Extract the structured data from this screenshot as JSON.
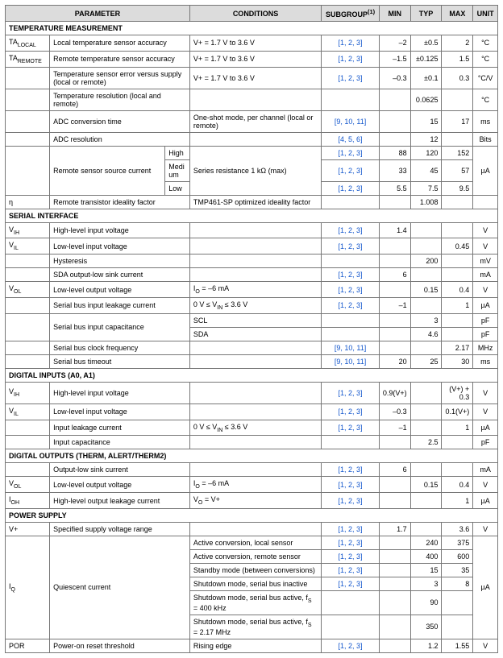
{
  "headers": {
    "param": "PARAMETER",
    "cond": "CONDITIONS",
    "subg": "SUBGROUP",
    "subg_sup": "(1)",
    "min": "MIN",
    "typ": "TYP",
    "max": "MAX",
    "unit": "UNIT"
  },
  "subgroup_color": "#1155cc",
  "header_bg": "#dcdcdc",
  "border_color": "#777777",
  "sections": [
    {
      "title": "TEMPERATURE MEASUREMENT",
      "rows": [
        {
          "sym_html": "TA<sub>LOCAL</sub>",
          "param": "Local temperature sensor accuracy",
          "cond": "V+ = 1.7 V to 3.6 V",
          "subg": "[1, 2, 3]",
          "min": "–2",
          "typ": "±0.5",
          "max": "2",
          "unit": "°C"
        },
        {
          "sym_html": "TA<sub>REMOTE</sub>",
          "param": "Remote temperature sensor accuracy",
          "cond": "V+ = 1.7 V to 3.6 V",
          "subg": "[1, 2, 3]",
          "min": "–1.5",
          "typ": "±0.125",
          "max": "1.5",
          "unit": "°C"
        },
        {
          "sym_html": "",
          "param": "Temperature sensor error versus supply (local or remote)",
          "cond": "V+ = 1.7 V to 3.6 V",
          "subg": "[1, 2, 3]",
          "min": "–0.3",
          "typ": "±0.1",
          "max": "0.3",
          "unit": "°C/V"
        },
        {
          "sym_html": "",
          "param": "Temperature resolution (local and remote)",
          "cond": "",
          "subg": "",
          "min": "",
          "typ": "0.0625",
          "max": "",
          "unit": "°C"
        },
        {
          "sym_html": "",
          "param": "ADC conversion time",
          "cond": "One-shot mode, per channel (local or remote)",
          "subg": "[9, 10, 11]",
          "min": "",
          "typ": "15",
          "max": "17",
          "unit": "ms"
        },
        {
          "sym_html": "",
          "param": "ADC resolution",
          "cond": "",
          "subg": "[4, 5, 6]",
          "min": "",
          "typ": "12",
          "max": "",
          "unit": "Bits"
        }
      ],
      "remote_sensor": {
        "param": "Remote sensor source current",
        "cond": "Series resistance 1 kΩ (max)",
        "unit": "µA",
        "levels": [
          {
            "label": "High",
            "subg": "[1, 2, 3]",
            "min": "88",
            "typ": "120",
            "max": "152"
          },
          {
            "label": "Medium",
            "subg": "[1, 2, 3]",
            "min": "33",
            "typ": "45",
            "max": "57"
          },
          {
            "label": "Low",
            "subg": "[1, 2, 3]",
            "min": "5.5",
            "typ": "7.5",
            "max": "9.5"
          }
        ]
      },
      "ideality": {
        "sym": "η",
        "param": "Remote transistor ideality factor",
        "cond": "TMP461-SP optimized ideality factor",
        "subg": "",
        "min": "",
        "typ": "1.008",
        "max": "",
        "unit": ""
      }
    },
    {
      "title": "SERIAL INTERFACE",
      "rows": [
        {
          "sym_html": "V<sub>IH</sub>",
          "param": "High-level input voltage",
          "cond": "",
          "subg": "[1, 2, 3]",
          "min": "1.4",
          "typ": "",
          "max": "",
          "unit": "V"
        },
        {
          "sym_html": "V<sub>IL</sub>",
          "param": "Low-level input voltage",
          "cond": "",
          "subg": "[1, 2, 3]",
          "min": "",
          "typ": "",
          "max": "0.45",
          "unit": "V"
        },
        {
          "sym_html": "",
          "param": "Hysteresis",
          "cond": "",
          "subg": "",
          "min": "",
          "typ": "200",
          "max": "",
          "unit": "mV"
        },
        {
          "sym_html": "",
          "param": "SDA output-low sink current",
          "cond": "",
          "subg": "[1, 2, 3]",
          "min": "6",
          "typ": "",
          "max": "",
          "unit": "mA"
        },
        {
          "sym_html": "V<sub>OL</sub>",
          "param": "Low-level output voltage",
          "cond_html": "I<sub>O</sub> = –6 mA",
          "subg": "[1, 2, 3]",
          "min": "",
          "typ": "0.15",
          "max": "0.4",
          "unit": "V"
        },
        {
          "sym_html": "",
          "param": "Serial bus input leakage current",
          "cond_html": "0 V ≤ V<sub>IN</sub> ≤ 3.6 V",
          "subg": "[1, 2, 3]",
          "min": "–1",
          "typ": "",
          "max": "1",
          "unit": "µA"
        }
      ],
      "capacitance": {
        "param": "Serial bus input capacitance",
        "unit": "pF",
        "lines": [
          {
            "cond": "SCL",
            "subg": "",
            "min": "",
            "typ": "3",
            "max": ""
          },
          {
            "cond": "SDA",
            "subg": "",
            "min": "",
            "typ": "4.6",
            "max": ""
          }
        ]
      },
      "tail": [
        {
          "sym_html": "",
          "param": "Serial bus clock frequency",
          "cond": "",
          "subg": "[9, 10, 11]",
          "min": "",
          "typ": "",
          "max": "2.17",
          "unit": "MHz"
        },
        {
          "sym_html": "",
          "param": "Serial bus timeout",
          "cond": "",
          "subg": "[9, 10, 11]",
          "min": "20",
          "typ": "25",
          "max": "30",
          "unit": "ms"
        }
      ]
    },
    {
      "title": "DIGITAL INPUTS (A0, A1)",
      "rows": [
        {
          "sym_html": "V<sub>IH</sub>",
          "param": "High-level input voltage",
          "cond": "",
          "subg": "[1, 2, 3]",
          "min": "0.9(V+)",
          "typ": "",
          "max": "(V+) + 0.3",
          "unit": "V"
        },
        {
          "sym_html": "V<sub>IL</sub>",
          "param": "Low-level input voltage",
          "cond": "",
          "subg": "[1, 2, 3]",
          "min": "–0.3",
          "typ": "",
          "max": "0.1(V+)",
          "unit": "V"
        },
        {
          "sym_html": "",
          "param": "Input leakage current",
          "cond_html": "0 V ≤ V<sub>IN</sub> ≤ 3.6 V",
          "subg": "[1, 2, 3]",
          "min": "–1",
          "typ": "",
          "max": "1",
          "unit": "µA"
        },
        {
          "sym_html": "",
          "param": "Input capacitance",
          "cond": "",
          "subg": "",
          "min": "",
          "typ": "2.5",
          "max": "",
          "unit": "pF"
        }
      ]
    },
    {
      "title": "DIGITAL OUTPUTS (THERM, ALERT/THERM2)",
      "rows": [
        {
          "sym_html": "",
          "param": "Output-low sink current",
          "cond": "",
          "subg": "[1, 2, 3]",
          "min": "6",
          "typ": "",
          "max": "",
          "unit": "mA"
        },
        {
          "sym_html": "V<sub>OL</sub>",
          "param": "Low-level output voltage",
          "cond_html": "I<sub>O</sub> = –6 mA",
          "subg": "[1, 2, 3]",
          "min": "",
          "typ": "0.15",
          "max": "0.4",
          "unit": "V"
        },
        {
          "sym_html": "I<sub>OH</sub>",
          "param": "High-level output leakage current",
          "cond_html": "V<sub>O</sub> = V+",
          "subg": "[1, 2, 3]",
          "min": "",
          "typ": "",
          "max": "1",
          "unit": "µA"
        }
      ]
    },
    {
      "title": "POWER SUPPLY",
      "rows": [
        {
          "sym_html": "V+",
          "param": "Specified supply voltage range",
          "cond": "",
          "subg": "[1, 2, 3]",
          "min": "1.7",
          "typ": "",
          "max": "3.6",
          "unit": "V"
        }
      ],
      "iq": {
        "sym_html": "I<sub>Q</sub>",
        "param": "Quiescent current",
        "unit": "µA",
        "modes": [
          {
            "cond": "Active conversion, local sensor",
            "subg": "[1, 2, 3]",
            "min": "",
            "typ": "240",
            "max": "375"
          },
          {
            "cond": "Active conversion, remote sensor",
            "subg": "[1, 2, 3]",
            "min": "",
            "typ": "400",
            "max": "600"
          },
          {
            "cond": "Standby mode (between conversions)",
            "subg": "[1, 2, 3]",
            "min": "",
            "typ": "15",
            "max": "35"
          },
          {
            "cond": "Shutdown mode, serial bus inactive",
            "subg": "[1, 2, 3]",
            "min": "",
            "typ": "3",
            "max": "8"
          },
          {
            "cond_html": "Shutdown mode, serial bus active, f<sub>S</sub> = 400 kHz",
            "subg": "",
            "min": "",
            "typ": "90",
            "max": ""
          },
          {
            "cond_html": "Shutdown mode, serial bus active, f<sub>S</sub> = 2.17 MHz",
            "subg": "",
            "min": "",
            "typ": "350",
            "max": ""
          }
        ]
      },
      "por": {
        "sym": "POR",
        "param": "Power-on reset threshold",
        "cond": "Rising edge",
        "subg": "[1, 2, 3]",
        "min": "",
        "typ": "1.2",
        "max": "1.55",
        "unit": "V"
      }
    }
  ]
}
